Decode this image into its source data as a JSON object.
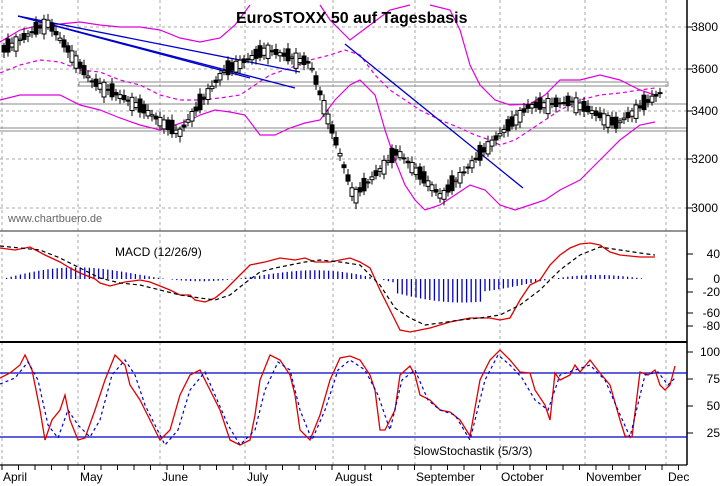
{
  "chart_data": [
    {
      "type": "candlestick",
      "title": "EuroSTOXX 50 auf Tagesbasis",
      "watermark": "www.chartbuero.de",
      "yticks": [
        3000,
        3200,
        3400,
        3600,
        3800
      ],
      "ylim": [
        2900,
        3900
      ],
      "months": [
        "April",
        "May",
        "June",
        "July",
        "August",
        "September",
        "October",
        "November",
        "Dec"
      ],
      "overlays": [
        "Bollinger Bands (magenta)",
        "Blue trendlines",
        "Grey horizontal support/resistance boxes"
      ],
      "approx_close_path": [
        {
          "month": "April",
          "value": 3700
        },
        {
          "month": "April-end",
          "value": 3820
        },
        {
          "month": "May",
          "value": 3560
        },
        {
          "month": "June",
          "value": 3460
        },
        {
          "month": "June-end",
          "value": 3330
        },
        {
          "month": "July",
          "value": 3600
        },
        {
          "month": "July-mid",
          "value": 3700
        },
        {
          "month": "August",
          "value": 3640
        },
        {
          "month": "August-mid",
          "value": 3050
        },
        {
          "month": "September",
          "value": 3250
        },
        {
          "month": "September-end",
          "value": 3050
        },
        {
          "month": "October",
          "value": 3260
        },
        {
          "month": "October-mid",
          "value": 3450
        },
        {
          "month": "November",
          "value": 3470
        },
        {
          "month": "November-mid",
          "value": 3370
        },
        {
          "month": "November-end",
          "value": 3510
        }
      ],
      "horizontal_levels": [
        3520,
        3310,
        3290
      ]
    },
    {
      "type": "line",
      "title": "MACD (12/26/9)",
      "yticks": [
        40,
        0,
        -20,
        -60,
        -80
      ],
      "series": [
        {
          "name": "MACD",
          "color": "#e00000"
        },
        {
          "name": "Signal",
          "color": "#000000",
          "style": "dashed"
        },
        {
          "name": "Histogram",
          "color": "#0000cc",
          "style": "bars"
        }
      ]
    },
    {
      "type": "line",
      "title": "SlowStochastik (5/3/3)",
      "yticks": [
        100,
        75,
        50,
        25
      ],
      "reference_lines": [
        80,
        20
      ],
      "series": [
        {
          "name": "%K",
          "color": "#e00000"
        },
        {
          "name": "%D",
          "color": "#0000cc",
          "style": "dashed"
        }
      ]
    }
  ],
  "labels": {
    "title": "EuroSTOXX 50 auf Tagesbasis",
    "watermark": "www.chartbuero.de",
    "macd": "MACD (12/26/9)",
    "stoch": "SlowStochastik (5/3/3)",
    "price_ticks": [
      "3800",
      "3600",
      "3400",
      "3200",
      "3000"
    ],
    "macd_ticks": [
      "40",
      "0",
      "-20",
      "-60",
      "-80"
    ],
    "stoch_ticks": [
      "100",
      "75",
      "50",
      "25"
    ],
    "months": [
      "April",
      "May",
      "June",
      "July",
      "August",
      "September",
      "October",
      "November",
      "Dec"
    ]
  }
}
